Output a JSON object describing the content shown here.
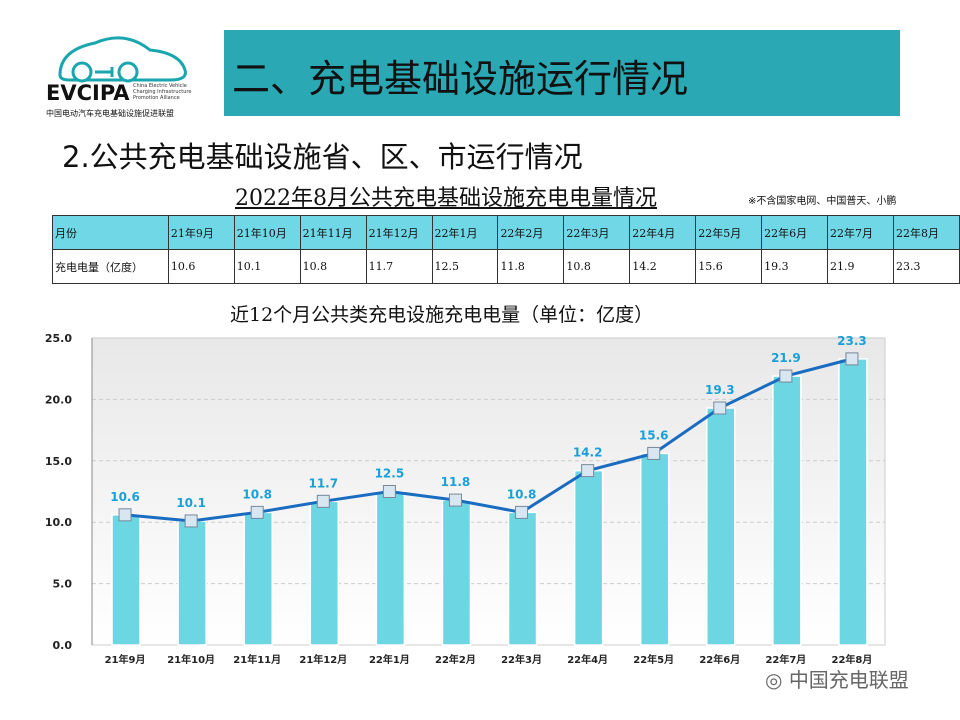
{
  "logo": {
    "brand": "EVCIPA",
    "en": [
      "China Electric Vehicle",
      "Charging Infrastructure",
      "Promotion Alliance"
    ],
    "cn": "中国电动汽车充电基础设施促进联盟"
  },
  "header": {
    "title": "二、充电基础设施运行情况"
  },
  "subtitle": "2.公共充电基础设施省、区、市运行情况",
  "table": {
    "title": "2022年8月公共充电基础设施充电电量情况",
    "note": "※不含国家电网、中国普天、小鹏",
    "row_headers": [
      "月份",
      "充电电量（亿度）"
    ],
    "months": [
      "21年9月",
      "21年10月",
      "21年11月",
      "21年12月",
      "22年1月",
      "22年2月",
      "22年3月",
      "22年4月",
      "22年5月",
      "22年6月",
      "22年7月",
      "22年8月"
    ],
    "values": [
      "10.6",
      "10.1",
      "10.8",
      "11.7",
      "12.5",
      "11.8",
      "10.8",
      "14.2",
      "15.6",
      "19.3",
      "21.9",
      "23.3"
    ]
  },
  "chart_data": {
    "type": "bar",
    "title": "近12个月公共类充电设施充电电量（单位：亿度）",
    "categories": [
      "21年9月",
      "21年10月",
      "21年11月",
      "21年12月",
      "22年1月",
      "22年2月",
      "22年3月",
      "22年4月",
      "22年5月",
      "22年6月",
      "22年7月",
      "22年8月"
    ],
    "series": [
      {
        "name": "充电电量",
        "type": "bar",
        "values": [
          10.6,
          10.1,
          10.8,
          11.7,
          12.5,
          11.8,
          10.8,
          14.2,
          15.6,
          19.3,
          21.9,
          23.3
        ]
      },
      {
        "name": "充电电量",
        "type": "line",
        "values": [
          10.6,
          10.1,
          10.8,
          11.7,
          12.5,
          11.8,
          10.8,
          14.2,
          15.6,
          19.3,
          21.9,
          23.3
        ]
      }
    ],
    "ylim": [
      0,
      25
    ],
    "yticks": [
      "0.0",
      "5.0",
      "10.0",
      "15.0",
      "20.0",
      "25.0"
    ],
    "grid": true,
    "colors": {
      "bar": "#6dd6e3",
      "line": "#1a6cc0",
      "label": "#1aa0d8"
    }
  },
  "watermark": "中国充电联盟"
}
